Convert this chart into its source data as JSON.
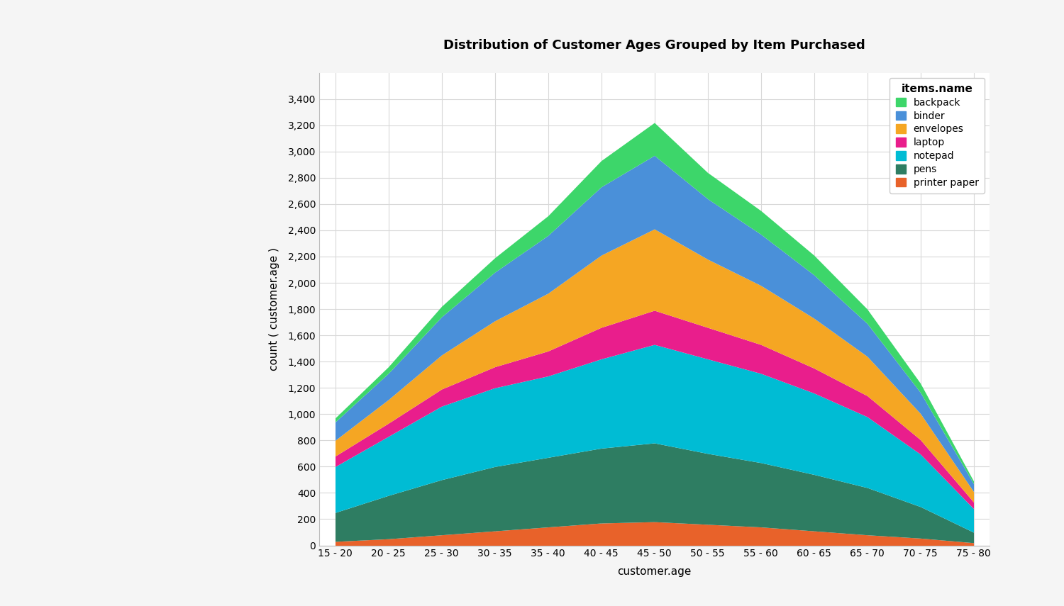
{
  "title": "Distribution of Customer Ages Grouped by Item Purchased",
  "xlabel": "customer.age",
  "ylabel": "count ( customer.age )",
  "plot_bg_color": "#ffffff",
  "grid_color": "#d8d8d8",
  "x_labels": [
    "15 - 20",
    "20 - 25",
    "25 - 30",
    "30 - 35",
    "35 - 40",
    "40 - 45",
    "45 - 50",
    "50 - 55",
    "55 - 60",
    "60 - 65",
    "65 - 70",
    "70 - 75",
    "75 - 80"
  ],
  "series": [
    {
      "name": "printer paper",
      "color": "#e8622a",
      "values": [
        30,
        50,
        80,
        110,
        140,
        170,
        180,
        160,
        140,
        110,
        80,
        55,
        20
      ]
    },
    {
      "name": "pens",
      "color": "#2e7d62",
      "values": [
        220,
        330,
        420,
        490,
        530,
        570,
        600,
        540,
        490,
        430,
        360,
        240,
        80
      ]
    },
    {
      "name": "notepad",
      "color": "#00bcd4",
      "values": [
        350,
        450,
        560,
        600,
        620,
        680,
        750,
        720,
        680,
        620,
        540,
        400,
        180
      ]
    },
    {
      "name": "laptop",
      "color": "#e91e8c",
      "values": [
        80,
        100,
        130,
        160,
        190,
        240,
        260,
        240,
        220,
        190,
        160,
        110,
        50
      ]
    },
    {
      "name": "envelopes",
      "color": "#f5a623",
      "values": [
        120,
        180,
        260,
        350,
        440,
        550,
        620,
        520,
        450,
        380,
        300,
        200,
        80
      ]
    },
    {
      "name": "binder",
      "color": "#4a90d9",
      "values": [
        140,
        200,
        290,
        370,
        440,
        520,
        560,
        460,
        390,
        330,
        250,
        160,
        60
      ]
    },
    {
      "name": "backpack",
      "color": "#3dd66a",
      "values": [
        30,
        50,
        80,
        110,
        150,
        200,
        250,
        200,
        180,
        150,
        110,
        70,
        20
      ]
    }
  ],
  "ylim": [
    0,
    3600
  ],
  "yticks": [
    0,
    200,
    400,
    600,
    800,
    1000,
    1200,
    1400,
    1600,
    1800,
    2000,
    2200,
    2400,
    2600,
    2800,
    3000,
    3200,
    3400
  ],
  "legend_title": "items.name",
  "legend_order": [
    "backpack",
    "binder",
    "envelopes",
    "laptop",
    "notepad",
    "pens",
    "printer paper"
  ],
  "title_fontsize": 13,
  "axis_label_fontsize": 11,
  "tick_fontsize": 10,
  "legend_fontsize": 10,
  "outer_bg": "#f5f5f5"
}
